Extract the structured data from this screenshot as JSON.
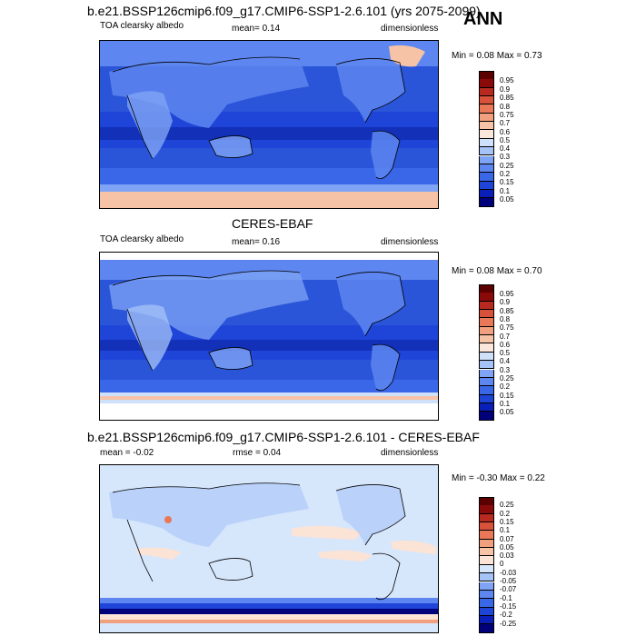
{
  "season": "ANN",
  "panels": [
    {
      "title": "b.e21.BSSP126cmip6.f09_g17.CMIP6-SSP1-2.6.101 (yrs 2075-2099)",
      "left_label": "TOA clearsky albedo",
      "center_label": "mean=   0.14",
      "right_label": "dimensionless",
      "minmax": "Min =   0.08 Max =   0.73",
      "colorbar_labels": [
        "0.95",
        "0.9",
        "0.85",
        "0.8",
        "0.75",
        "0.7",
        "0.6",
        "0.5",
        "0.4",
        "0.3",
        "0.25",
        "0.2",
        "0.15",
        "0.1",
        "0.05"
      ]
    },
    {
      "title": "CERES-EBAF",
      "left_label": "TOA clearsky albedo",
      "center_label": "mean=   0.16",
      "right_label": "dimensionless",
      "minmax": "Min =   0.08 Max =   0.70",
      "colorbar_labels": [
        "0.95",
        "0.9",
        "0.85",
        "0.8",
        "0.75",
        "0.7",
        "0.6",
        "0.5",
        "0.4",
        "0.3",
        "0.25",
        "0.2",
        "0.15",
        "0.1",
        "0.05"
      ]
    },
    {
      "title": "b.e21.BSSP126cmip6.f09_g17.CMIP6-SSP1-2.6.101 - CERES-EBAF",
      "left_label": "mean =  -0.02",
      "center_label": "rmse =  0.04",
      "right_label": "dimensionless",
      "minmax": "Min =  -0.30 Max =   0.22",
      "colorbar_labels": [
        "0.25",
        "0.2",
        "0.15",
        "0.1",
        "0.07",
        "0.05",
        "0.03",
        "0",
        "-0.03",
        "-0.05",
        "-0.07",
        "-0.1",
        "-0.15",
        "-0.2",
        "-0.25"
      ]
    }
  ],
  "chart_data": [
    {
      "type": "heatmap",
      "title": "b.e21.BSSP126cmip6.f09_g17.CMIP6-SSP1-2.6.101 (yrs 2075-2099)",
      "variable": "TOA clearsky albedo",
      "units": "dimensionless",
      "mean": 0.14,
      "min": 0.08,
      "max": 0.73,
      "contour_levels": [
        0.05,
        0.1,
        0.15,
        0.2,
        0.25,
        0.3,
        0.4,
        0.5,
        0.6,
        0.7,
        0.75,
        0.8,
        0.85,
        0.9,
        0.95
      ],
      "colors": [
        "#00007a",
        "#0a1fb8",
        "#1f45d8",
        "#3a67e8",
        "#5d86f0",
        "#7fa4f5",
        "#a6c3f8",
        "#cfe0fb",
        "#fbe6dc",
        "#f6c3a6",
        "#f0a07e",
        "#e87858",
        "#d8513a",
        "#b82a1f",
        "#8a0a0a",
        "#5a0000"
      ]
    },
    {
      "type": "heatmap",
      "title": "CERES-EBAF",
      "variable": "TOA clearsky albedo",
      "units": "dimensionless",
      "mean": 0.16,
      "min": 0.08,
      "max": 0.7,
      "contour_levels": [
        0.05,
        0.1,
        0.15,
        0.2,
        0.25,
        0.3,
        0.4,
        0.5,
        0.6,
        0.7,
        0.75,
        0.8,
        0.85,
        0.9,
        0.95
      ],
      "colors": [
        "#00007a",
        "#0a1fb8",
        "#1f45d8",
        "#3a67e8",
        "#5d86f0",
        "#7fa4f5",
        "#a6c3f8",
        "#cfe0fb",
        "#fbe6dc",
        "#f6c3a6",
        "#f0a07e",
        "#e87858",
        "#d8513a",
        "#b82a1f",
        "#8a0a0a",
        "#5a0000"
      ]
    },
    {
      "type": "heatmap",
      "title": "b.e21.BSSP126cmip6.f09_g17.CMIP6-SSP1-2.6.101 - CERES-EBAF",
      "units": "dimensionless",
      "mean": -0.02,
      "rmse": 0.04,
      "min": -0.3,
      "max": 0.22,
      "contour_levels": [
        -0.25,
        -0.2,
        -0.15,
        -0.1,
        -0.07,
        -0.05,
        -0.03,
        0,
        0.03,
        0.05,
        0.07,
        0.1,
        0.15,
        0.2,
        0.25
      ],
      "colors": [
        "#00007a",
        "#0a1fb8",
        "#1f45d8",
        "#3a67e8",
        "#5d86f0",
        "#7fa4f5",
        "#a6c3f8",
        "#d6e6fb",
        "#fbe3d6",
        "#f6c3a6",
        "#f0a07e",
        "#e87858",
        "#d8513a",
        "#b82a1f",
        "#8a0a0a",
        "#5a0000"
      ]
    }
  ]
}
